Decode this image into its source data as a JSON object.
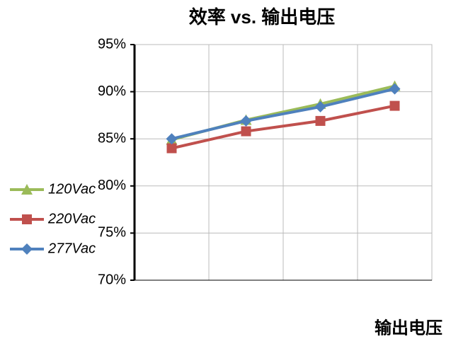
{
  "chart_data": {
    "type": "line",
    "title": "效率 vs. 输出电压",
    "x_label": "输出电压",
    "categories": [
      null,
      null,
      null,
      null
    ],
    "series": [
      {
        "name": "120Vac",
        "color": "#9bbb59",
        "marker": "triangle",
        "values": [
          84.9,
          87.0,
          88.7,
          90.6
        ]
      },
      {
        "name": "220Vac",
        "color": "#c0504d",
        "marker": "square",
        "values": [
          84.0,
          85.8,
          86.9,
          88.5
        ]
      },
      {
        "name": "277Vac",
        "color": "#4f81bd",
        "marker": "diamond",
        "values": [
          85.0,
          86.9,
          88.4,
          90.3
        ]
      }
    ],
    "ylim": [
      70,
      95
    ],
    "yticks": [
      {
        "value": 70,
        "label": "70%"
      },
      {
        "value": 75,
        "label": "75%"
      },
      {
        "value": 80,
        "label": "80%"
      },
      {
        "value": 85,
        "label": "85%"
      },
      {
        "value": 90,
        "label": "90%"
      },
      {
        "value": 95,
        "label": "95%"
      }
    ],
    "grid": true,
    "legend": "left"
  }
}
